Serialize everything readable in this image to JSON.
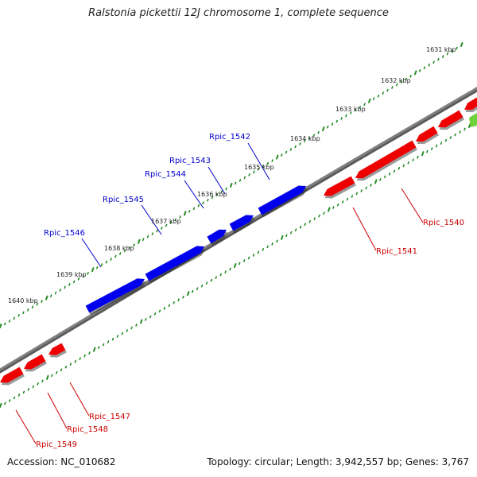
{
  "title": "Ralstonia pickettii 12J chromosome 1, complete sequence",
  "footer": {
    "accession": "Accession: NC_010682",
    "summary": "Topology: circular; Length: 3,942,557 bp; Genes: 3,767"
  },
  "colors": {
    "background": "#ffffff",
    "backbone": "#808080",
    "forward_gene": "#0000ee",
    "reverse_gene": "#ee0000",
    "tick": "#228b22",
    "forward_label": "#0000cc",
    "reverse_label": "#cc0000"
  },
  "scale": {
    "unit": "kbp",
    "labels": [
      "1631 kbp",
      "1632 kbp",
      "1633 kbp",
      "1634 kbp",
      "1635 kbp",
      "1636 kbp",
      "1637 kbp",
      "1638 kbp",
      "1639 kbp",
      "1640 kbp"
    ]
  },
  "genes": {
    "forward_strand": [
      "Rpic_1542",
      "Rpic_1543",
      "Rpic_1544",
      "Rpic_1545",
      "Rpic_1546"
    ],
    "reverse_strand": [
      "Rpic_1540",
      "Rpic_1541",
      "Rpic_1547",
      "Rpic_1548",
      "Rpic_1549"
    ]
  }
}
